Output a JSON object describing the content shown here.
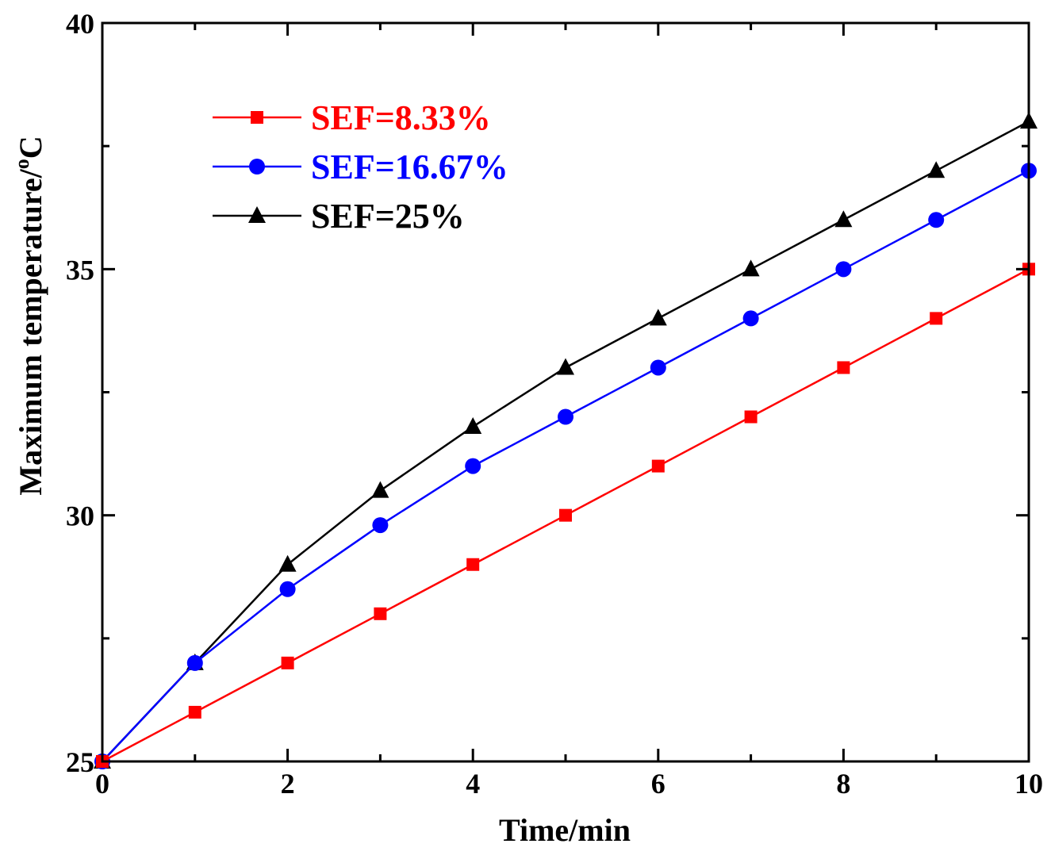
{
  "chart_data": {
    "type": "line",
    "title": "",
    "xlabel": "Time/min",
    "ylabel": "Maximum temperature/",
    "ylabel_unit_sup": "o",
    "ylabel_unit": "C",
    "xlim": [
      0,
      10
    ],
    "ylim": [
      25,
      40
    ],
    "x_ticks": [
      0,
      2,
      4,
      6,
      8,
      10
    ],
    "x_tick_labels": [
      "0",
      "2",
      "4",
      "6",
      "8",
      "10"
    ],
    "y_ticks": [
      25,
      30,
      35,
      40
    ],
    "y_tick_labels": [
      "25",
      "30",
      "35",
      "40"
    ],
    "x_minor_ticks": [
      1,
      3,
      5,
      7,
      9
    ],
    "y_minor_ticks": [
      27.5,
      32.5,
      37.5
    ],
    "grid": false,
    "legend_position": "top-left",
    "x": [
      0,
      1,
      2,
      3,
      4,
      5,
      6,
      7,
      8,
      9,
      10
    ],
    "series": [
      {
        "name": "SEF=8.33%",
        "color": "#ff0000",
        "marker": "square",
        "values": [
          25,
          26,
          27,
          28,
          29,
          30,
          31,
          32,
          33,
          34,
          35
        ]
      },
      {
        "name": "SEF=16.67%",
        "color": "#0000ff",
        "marker": "circle",
        "values": [
          25,
          27,
          28.5,
          29.8,
          31,
          32,
          33,
          34,
          35,
          36,
          37
        ]
      },
      {
        "name": "SEF=25%",
        "color": "#000000",
        "marker": "triangle",
        "values": [
          25,
          27,
          29,
          30.5,
          31.8,
          33,
          34,
          35,
          36,
          37,
          38
        ]
      }
    ]
  }
}
